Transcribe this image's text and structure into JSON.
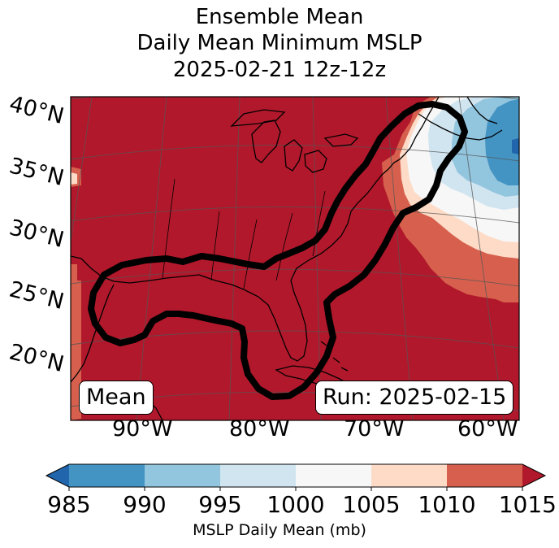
{
  "title": {
    "line1": "Ensemble Mean",
    "line2": "Daily Mean Minimum MSLP",
    "line3": "2025-02-21 12z-12z"
  },
  "map": {
    "lat_labels": [
      "40°N",
      "35°N",
      "30°N",
      "25°N",
      "20°N"
    ],
    "lon_labels": [
      "90°W",
      "80°W",
      "70°W",
      "60°W"
    ],
    "mean_label": "Mean",
    "run_label": "Run: 2025-02-15",
    "contour_note": "black contour outlines ensemble mean low-pressure region"
  },
  "colorbar": {
    "ticks": [
      "985",
      "990",
      "995",
      "1000",
      "1005",
      "1010",
      "1015"
    ],
    "title": "MSLP Daily Mean (mb)",
    "colors": [
      "#2166ac",
      "#4393c3",
      "#92c5de",
      "#d1e5f0",
      "#f7f7f7",
      "#fddbc7",
      "#d6604d",
      "#b2182b"
    ]
  },
  "colors": {
    "dominant_fill": "#b2182b",
    "contour": "#000000",
    "land_outline": "#000000",
    "graticule": "#555555"
  }
}
